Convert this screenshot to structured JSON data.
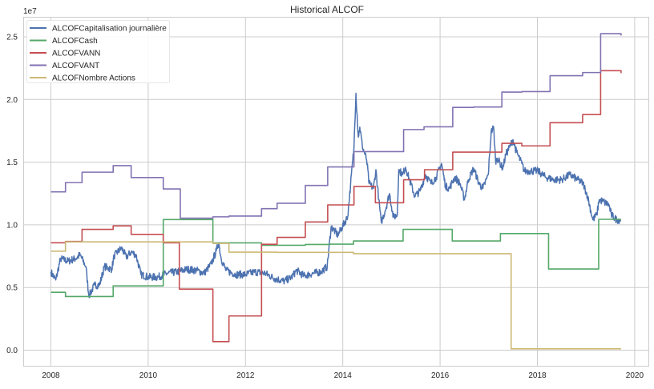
{
  "chart_data": {
    "type": "line",
    "title": "Historical ALCOF",
    "xlabel": "",
    "ylabel": "",
    "y_scale_label": "1e7",
    "xlim": [
      2007.45,
      2020.3
    ],
    "ylim": [
      -0.13,
      2.63
    ],
    "grid": true,
    "legend_position": "top-left",
    "x_ticks": [
      2008,
      2010,
      2012,
      2014,
      2016,
      2018,
      2020
    ],
    "x_tick_labels": [
      "2008",
      "2010",
      "2012",
      "2014",
      "2016",
      "2018",
      "2020"
    ],
    "y_ticks": [
      0,
      0.5,
      1.0,
      1.5,
      2.0,
      2.5
    ],
    "y_tick_labels": [
      "0.0",
      "0.5",
      "1.0",
      "1.5",
      "2.0",
      "2.5"
    ],
    "series": [
      {
        "name": "ALCOFCapitalisation journalière",
        "color": "#4c72b0",
        "step": false,
        "x": [
          2008.0,
          2008.1,
          2008.2,
          2008.35,
          2008.5,
          2008.6,
          2008.72,
          2008.78,
          2008.9,
          2009.0,
          2009.1,
          2009.25,
          2009.3,
          2009.45,
          2009.55,
          2009.65,
          2009.75,
          2009.85,
          2010.0,
          2010.2,
          2010.4,
          2010.6,
          2010.8,
          2011.0,
          2011.15,
          2011.3,
          2011.4,
          2011.45,
          2011.5,
          2011.6,
          2011.8,
          2012.0,
          2012.2,
          2012.4,
          2012.6,
          2012.8,
          2012.95,
          2013.05,
          2013.2,
          2013.4,
          2013.55,
          2013.68,
          2013.76,
          2013.9,
          2014.1,
          2014.16,
          2014.23,
          2014.27,
          2014.32,
          2014.35,
          2014.4,
          2014.49,
          2014.54,
          2014.63,
          2014.68,
          2014.74,
          2014.79,
          2014.87,
          2014.96,
          2015.04,
          2015.12,
          2015.15,
          2015.23,
          2015.29,
          2015.37,
          2015.48,
          2015.59,
          2015.7,
          2015.81,
          2015.92,
          2016.03,
          2016.11,
          2016.19,
          2016.3,
          2016.41,
          2016.5,
          2016.58,
          2016.69,
          2016.8,
          2016.88,
          2016.99,
          2017.05,
          2017.1,
          2017.14,
          2017.18,
          2017.29,
          2017.35,
          2017.43,
          2017.5,
          2017.57,
          2017.68,
          2017.73,
          2017.84,
          2018.01,
          2018.17,
          2018.34,
          2018.5,
          2018.67,
          2018.83,
          2018.94,
          2019.03,
          2019.14,
          2019.22,
          2019.27,
          2019.38,
          2019.47,
          2019.52,
          2019.63,
          2019.71
        ],
        "values": [
          0.625,
          0.56,
          0.73,
          0.71,
          0.73,
          0.76,
          0.667,
          0.434,
          0.52,
          0.52,
          0.667,
          0.646,
          0.752,
          0.816,
          0.742,
          0.784,
          0.76,
          0.604,
          0.583,
          0.583,
          0.614,
          0.625,
          0.646,
          0.636,
          0.614,
          0.689,
          0.794,
          0.858,
          0.73,
          0.636,
          0.604,
          0.604,
          0.625,
          0.614,
          0.572,
          0.55,
          0.583,
          0.636,
          0.593,
          0.614,
          0.625,
          0.667,
          0.985,
          0.918,
          1.065,
          1.32,
          1.62,
          2.05,
          1.7,
          1.78,
          1.63,
          1.52,
          1.33,
          1.29,
          1.44,
          1.2,
          1.02,
          1.11,
          1.25,
          1.06,
          1.08,
          1.44,
          1.4,
          1.46,
          1.36,
          1.23,
          1.27,
          1.4,
          1.33,
          1.38,
          1.49,
          1.31,
          1.29,
          1.38,
          1.33,
          1.2,
          1.36,
          1.45,
          1.33,
          1.29,
          1.4,
          1.74,
          1.78,
          1.51,
          1.53,
          1.45,
          1.56,
          1.62,
          1.68,
          1.58,
          1.49,
          1.43,
          1.43,
          1.43,
          1.38,
          1.36,
          1.36,
          1.4,
          1.36,
          1.33,
          1.23,
          1.04,
          1.08,
          1.2,
          1.18,
          1.16,
          1.08,
          1.04,
          1.04
        ]
      },
      {
        "name": "ALCOFCash",
        "color": "#55a868",
        "step": true,
        "x": [
          2008.0,
          2008.3,
          2009.28,
          2010.31,
          2011.33,
          2012.33,
          2013.23,
          2013.74,
          2014.22,
          2015.24,
          2016.25,
          2017.24,
          2018.23,
          2019.26,
          2019.72
        ],
        "values": [
          0.462,
          0.428,
          0.513,
          1.042,
          0.856,
          0.837,
          0.843,
          0.846,
          0.871,
          0.964,
          0.871,
          0.93,
          0.648,
          1.044,
          1.044
        ]
      },
      {
        "name": "ALCOFVANN",
        "color": "#c44e52",
        "step": true,
        "x": [
          2008.0,
          2008.3,
          2008.64,
          2009.28,
          2009.65,
          2010.31,
          2010.64,
          2011.33,
          2011.66,
          2012.33,
          2012.65,
          2013.23,
          2013.69,
          2014.23,
          2014.67,
          2015.25,
          2015.68,
          2016.26,
          2017.27,
          2017.68,
          2018.26,
          2018.93,
          2019.3,
          2019.72
        ],
        "values": [
          0.857,
          0.867,
          0.964,
          0.992,
          0.924,
          0.857,
          0.487,
          0.068,
          0.273,
          0.845,
          0.9,
          1.023,
          1.159,
          1.306,
          1.176,
          1.36,
          1.44,
          1.58,
          1.65,
          1.63,
          1.815,
          1.88,
          2.23,
          2.21
        ]
      },
      {
        "name": "ALCOFVANT",
        "color": "#8172b2",
        "step": true,
        "x": [
          2008.0,
          2008.3,
          2008.64,
          2009.28,
          2009.65,
          2010.31,
          2010.66,
          2011.33,
          2011.66,
          2012.33,
          2012.65,
          2013.23,
          2013.69,
          2014.23,
          2015.25,
          2015.67,
          2016.26,
          2016.69,
          2017.27,
          2017.68,
          2018.26,
          2018.93,
          2019.3,
          2019.72
        ],
        "values": [
          1.263,
          1.337,
          1.42,
          1.472,
          1.377,
          1.286,
          1.053,
          1.064,
          1.07,
          1.129,
          1.172,
          1.314,
          1.462,
          1.584,
          1.76,
          1.782,
          1.937,
          1.94,
          2.059,
          2.063,
          2.19,
          2.215,
          2.525,
          2.51
        ]
      },
      {
        "name": "ALCOFNombre Actions",
        "color": "#ccb974",
        "step": true,
        "x": [
          2008.0,
          2008.3,
          2011.33,
          2011.66,
          2012.65,
          2014.22,
          2017.46,
          2019.72
        ],
        "values": [
          0.79,
          0.864,
          0.852,
          0.782,
          0.78,
          0.77,
          0.011,
          0.011
        ]
      }
    ]
  }
}
